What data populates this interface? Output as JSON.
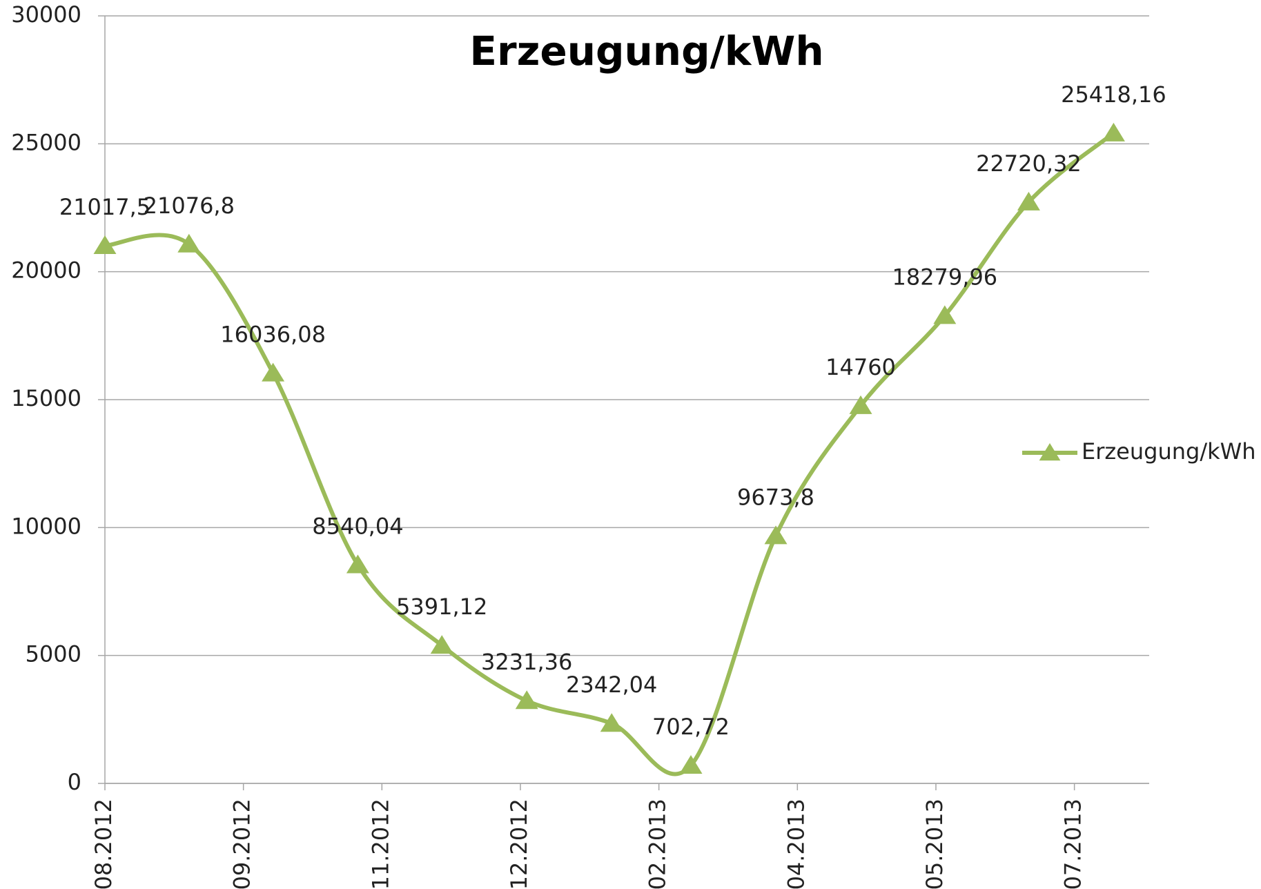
{
  "chart_data": {
    "type": "line",
    "title": "Erzeugung/kWh",
    "x": [
      0,
      0.607,
      1.214,
      1.826,
      2.433,
      3.046,
      3.659,
      4.231,
      4.844,
      5.457,
      6.064,
      6.67,
      7.283
    ],
    "xlim": [
      0,
      7.54
    ],
    "xticks": [
      {
        "value": 0,
        "label": "08.2012"
      },
      {
        "value": 1,
        "label": "09.2012"
      },
      {
        "value": 2,
        "label": "11.2012"
      },
      {
        "value": 3,
        "label": "12.2012"
      },
      {
        "value": 4,
        "label": "02.2013"
      },
      {
        "value": 5,
        "label": "04.2013"
      },
      {
        "value": 6,
        "label": "05.2013"
      },
      {
        "value": 7,
        "label": "07.2013"
      }
    ],
    "series": [
      {
        "name": "Erzeugung/kWh",
        "color": "#9bbb59",
        "values": [
          21017.5,
          21076.8,
          16036.08,
          8540.04,
          5391.12,
          3231.36,
          2342.04,
          702.72,
          9673.8,
          14760,
          18279.96,
          22720.32,
          25418.16
        ],
        "value_labels": [
          "21017,5",
          "21076,8",
          "16036,08",
          "8540,04",
          "5391,12",
          "3231,36",
          "2342,04",
          "702,72",
          "9673,8",
          "14760",
          "18279,96",
          "22720,32",
          "25418,16"
        ]
      }
    ],
    "ylim": [
      0,
      30000
    ],
    "yticks": [
      0,
      5000,
      10000,
      15000,
      20000,
      25000,
      30000
    ],
    "grid": true,
    "smooth": true,
    "legend": "right"
  }
}
